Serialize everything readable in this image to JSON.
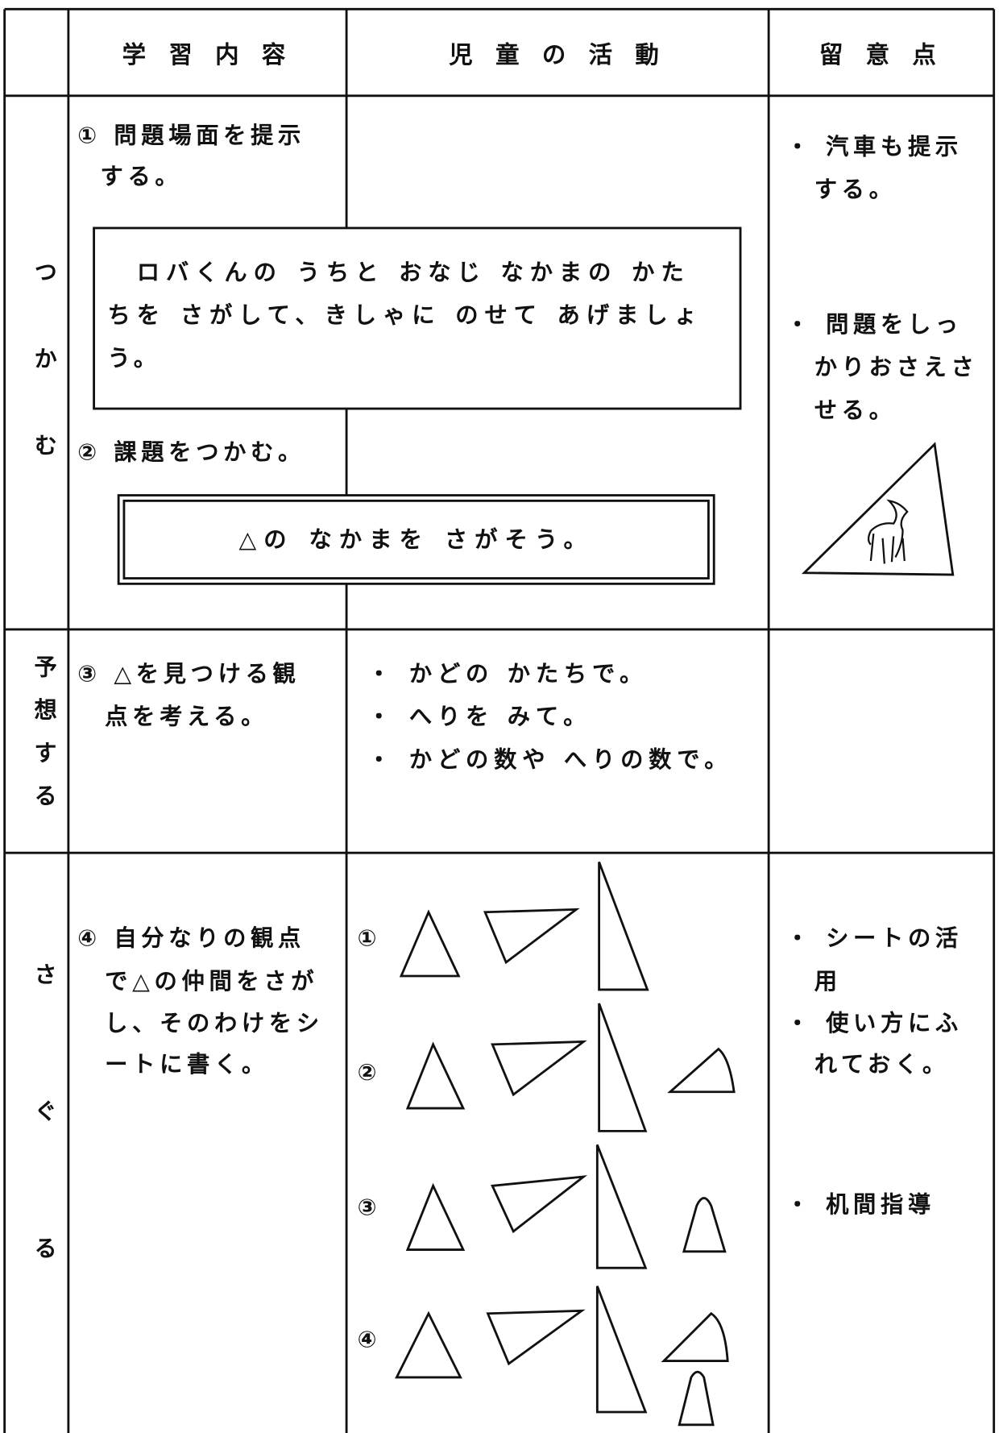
{
  "header": {
    "columns": [
      "学 習 内 容",
      "児 童 の 活 動",
      "留 意 点"
    ]
  },
  "rows": [
    {
      "stage": "つかむ",
      "content": [
        "① 問題場面を提示",
        "する。",
        "② 課題をつかむ。"
      ],
      "problem": [
        "ロバくんの うちと おなじ なかまの かた",
        "ちを さがして、きしゃに のせて あげましょ",
        "う。"
      ],
      "task": "△の なかまを さがそう。",
      "notes": [
        "・ 汽車も提示",
        "する。",
        "・ 問題をしっ",
        "かりおさえさ",
        "せる。"
      ]
    },
    {
      "stage": "予想する",
      "content": [
        "③ △を見つける観",
        "点を考える。"
      ],
      "activities": [
        "・ かどの かたちで。",
        "・ へりを みて。",
        "・ かどの数や へりの数で。"
      ]
    },
    {
      "stage": "さぐる",
      "content": [
        "④ 自分なりの観点",
        "で△の仲間をさが",
        "し、そのわけをシ",
        "ートに書く。"
      ],
      "activities": [
        "①",
        "②",
        "③",
        "④"
      ],
      "notes": [
        "・ シートの活",
        "用",
        "・ 使い方にふ",
        "れておく。",
        "・ 机間指導"
      ]
    }
  ]
}
